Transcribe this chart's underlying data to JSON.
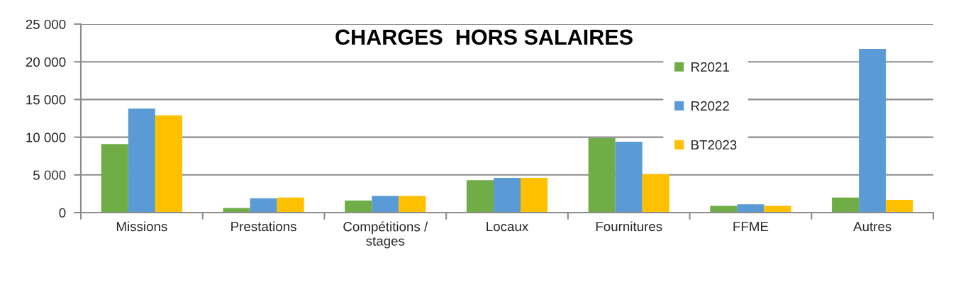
{
  "chart_data": {
    "type": "bar",
    "title": "CHARGES  HORS SALAIRES",
    "categories": [
      "Missions",
      "Prestations",
      "Compétitions / stages",
      "Locaux",
      "Fournitures",
      "FFME",
      "Autres"
    ],
    "series": [
      {
        "name": "R2021",
        "color": "#70ad47",
        "values": [
          9100,
          600,
          1600,
          4300,
          9900,
          900,
          2000
        ]
      },
      {
        "name": "R2022",
        "color": "#5b9bd5",
        "values": [
          13800,
          1900,
          2200,
          4600,
          9400,
          1100,
          21700
        ]
      },
      {
        "name": "BT2023",
        "color": "#ffc000",
        "values": [
          12900,
          2000,
          2200,
          4600,
          5100,
          900,
          1700
        ]
      }
    ],
    "ylim": [
      0,
      25000
    ],
    "yticks": [
      0,
      {
        "value": 5000,
        "label": "5 000"
      },
      {
        "value": 10000,
        "label": "10 000"
      },
      {
        "value": 15000,
        "label": "15 000"
      },
      {
        "value": 20000,
        "label": "20 000"
      },
      {
        "value": 25000,
        "label": "25 000"
      }
    ],
    "grid": "y",
    "legend": "right"
  }
}
